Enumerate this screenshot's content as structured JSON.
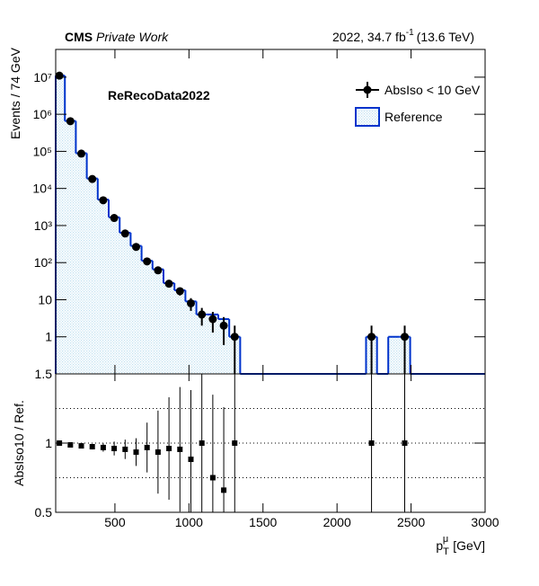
{
  "chart_data": [
    {
      "type": "histogram",
      "experiment": "CMS",
      "status": "Private Work",
      "lumi": "2022, 34.7 fb",
      "lumi_exp": "-1",
      "energy": "(13.6 TeV)",
      "annotation": "ReRecoData2022",
      "ylabel": "Events / 74 GeV",
      "log_y": true,
      "legend": "upper right",
      "xlim": [
        100,
        3000
      ],
      "ylim": [
        0.1,
        56000000
      ],
      "yticks": [
        1,
        10,
        {
          "value": 100,
          "label": "10²"
        },
        {
          "value": 1000,
          "label": "10³"
        },
        {
          "value": 10000,
          "label": "10⁴"
        },
        {
          "value": 100000,
          "label": "10⁵"
        },
        {
          "value": 1000000,
          "label": "10⁶"
        },
        {
          "value": 10000000,
          "label": "10⁷"
        }
      ],
      "series": [
        {
          "name": "AbsIso < 10 GeV",
          "color": "#000000",
          "x": [
            125,
            199,
            273,
            347,
            421,
            495,
            569,
            643,
            717,
            791,
            865,
            939,
            1013,
            1087,
            1161,
            1235,
            1309,
            2233,
            2457
          ],
          "values": [
            11000000,
            650000,
            87000,
            18000,
            4800,
            1600,
            610,
            265,
            108,
            62,
            27,
            17,
            8,
            4,
            3,
            2,
            1,
            1,
            1
          ],
          "errors": [
            3300,
            810,
            300,
            134,
            69,
            40,
            25,
            16,
            10,
            8,
            5,
            4,
            3,
            2,
            1.7,
            1.4,
            1,
            1,
            1
          ]
        },
        {
          "name": "Reference",
          "color": "#0033cc",
          "fill": "#bfe0f0",
          "bins": [
            88,
            162,
            236,
            310,
            384,
            458,
            532,
            606,
            680,
            754,
            828,
            902,
            976,
            1050,
            1124,
            1198,
            1272,
            1346,
            2196,
            2270,
            2346,
            2420,
            2494,
            3000
          ],
          "values": [
            11000000,
            660000,
            89000,
            18500,
            5000,
            1670,
            640,
            283,
            112,
            66,
            28,
            18,
            9,
            4,
            4,
            3,
            1,
            0,
            1,
            0,
            1,
            1,
            0
          ]
        }
      ]
    },
    {
      "type": "ratio",
      "ylabel": "AbsIso10 / Ref.",
      "xlabel": {
        "base": "p",
        "sub": "T",
        "sup": "μ",
        "unit": "[GeV]"
      },
      "xlim": [
        100,
        3000
      ],
      "xticks": [
        500,
        1000,
        1500,
        2000,
        2500,
        3000
      ],
      "ylim": [
        0.5,
        1.5
      ],
      "yticks": [
        0.5,
        1,
        1.5
      ],
      "ref_lines": [
        0.75,
        1,
        1.25
      ],
      "color": "#000000",
      "x": [
        125,
        199,
        273,
        347,
        421,
        495,
        569,
        643,
        717,
        791,
        865,
        939,
        1013,
        1087,
        1161,
        1235,
        1309,
        2233,
        2457
      ],
      "values": [
        1.0,
        0.987,
        0.98,
        0.974,
        0.968,
        0.961,
        0.955,
        0.935,
        0.968,
        0.935,
        0.961,
        0.955,
        0.883,
        1.0,
        0.75,
        0.66,
        1.0,
        1.0,
        1.0
      ],
      "errors": [
        0.005,
        0.01,
        0.015,
        0.02,
        0.03,
        0.05,
        0.07,
        0.1,
        0.18,
        0.3,
        0.37,
        0.45,
        0.5,
        0.6,
        0.6,
        0.6,
        1,
        1,
        1
      ]
    }
  ]
}
